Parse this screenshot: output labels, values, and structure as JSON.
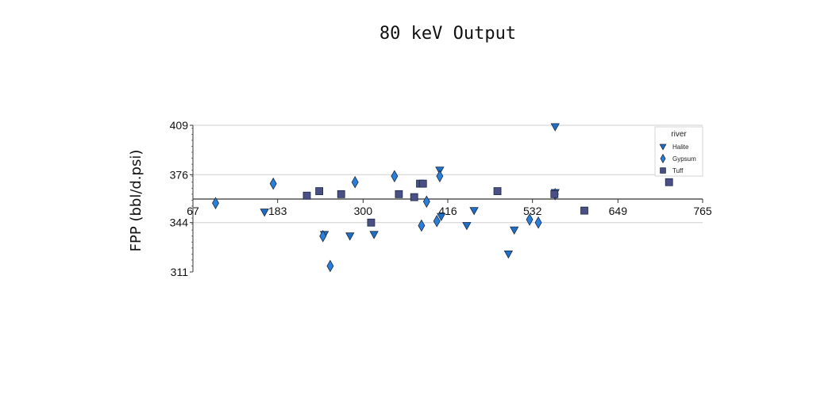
{
  "chart_data": {
    "type": "scatter",
    "title": "80 keV Output",
    "xlabel": "",
    "ylabel": "FPP (bbl/d.psi)",
    "xlim": [
      67,
      765
    ],
    "ylim": [
      311,
      409
    ],
    "x_ticks": [
      "67",
      "183",
      "300",
      "416",
      "532",
      "649",
      "765"
    ],
    "y_ticks": [
      "311",
      "344",
      "376",
      "409"
    ],
    "grid": "horizontal",
    "legend_title": "river",
    "legend_position": "top-right",
    "series": [
      {
        "name": "Halite",
        "marker": "triangle-down",
        "color": "#1f6fc4",
        "points": [
          [
            165,
            351
          ],
          [
            247,
            336
          ],
          [
            282,
            335
          ],
          [
            315,
            336
          ],
          [
            405,
            379
          ],
          [
            407,
            348
          ],
          [
            442,
            342
          ],
          [
            452,
            352
          ],
          [
            499,
            323
          ],
          [
            507,
            339
          ],
          [
            563,
            408
          ],
          [
            563,
            364
          ]
        ]
      },
      {
        "name": "Gypsum",
        "marker": "diamond",
        "color": "#2a7fd8",
        "points": [
          [
            98,
            357
          ],
          [
            177,
            370
          ],
          [
            245,
            335
          ],
          [
            255,
            315
          ],
          [
            289,
            371
          ],
          [
            343,
            375
          ],
          [
            380,
            342
          ],
          [
            387,
            358
          ],
          [
            401,
            345
          ],
          [
            405,
            375
          ],
          [
            528,
            346
          ],
          [
            540,
            344
          ],
          [
            563,
            363
          ]
        ]
      },
      {
        "name": "Tuff",
        "marker": "square",
        "color": "#4a4f86",
        "points": [
          [
            223,
            362
          ],
          [
            240,
            365
          ],
          [
            270,
            363
          ],
          [
            311,
            344
          ],
          [
            349,
            363
          ],
          [
            370,
            361
          ],
          [
            378,
            370
          ],
          [
            382,
            370
          ],
          [
            484,
            365
          ],
          [
            603,
            352
          ],
          [
            719,
            371
          ],
          [
            562,
            363
          ]
        ]
      }
    ]
  }
}
